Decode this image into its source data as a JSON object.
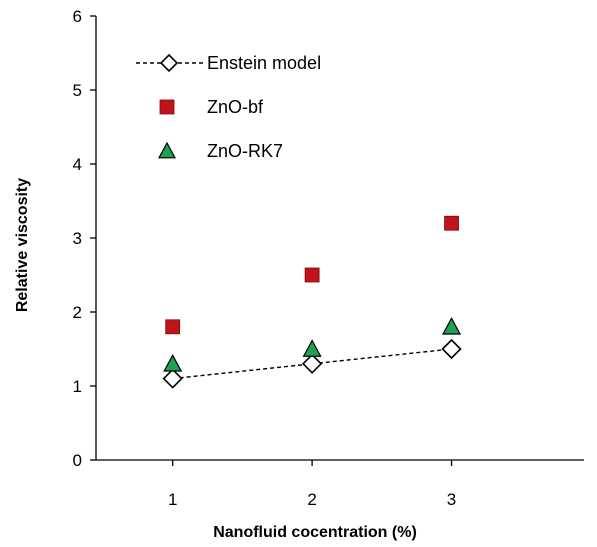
{
  "chart_data": {
    "type": "scatter",
    "title": "",
    "xlabel": "Nanofluid cocentration (%)",
    "ylabel": "Relative  viscosity",
    "xlim": [
      0.45,
      3.95
    ],
    "ylim": [
      0,
      6
    ],
    "x_ticks": [
      1,
      2,
      3
    ],
    "x_tick_labels": [
      "1",
      "2",
      "3"
    ],
    "y_ticks": [
      0,
      1,
      2,
      3,
      4,
      5,
      6
    ],
    "y_tick_labels": [
      "0",
      "1",
      "2",
      "3",
      "4",
      "5",
      "6"
    ],
    "grid": false,
    "legend_position": "top-left",
    "series": [
      {
        "name": "Enstein model",
        "kind": "line-marker",
        "marker": "diamond",
        "color": "#000000",
        "fill": "#ffffff",
        "line_style": "dashed",
        "x": [
          1,
          2,
          3
        ],
        "y": [
          1.1,
          1.3,
          1.5
        ]
      },
      {
        "name": "ZnO-bf",
        "kind": "marker",
        "marker": "square",
        "color": "#c0141b",
        "x": [
          1,
          2,
          3
        ],
        "y": [
          1.8,
          2.5,
          3.2
        ]
      },
      {
        "name": "ZnO-RK7",
        "kind": "marker",
        "marker": "triangle",
        "color": "#1ea152",
        "x": [
          1,
          2,
          3
        ],
        "y": [
          1.3,
          1.5,
          1.8
        ]
      }
    ]
  }
}
